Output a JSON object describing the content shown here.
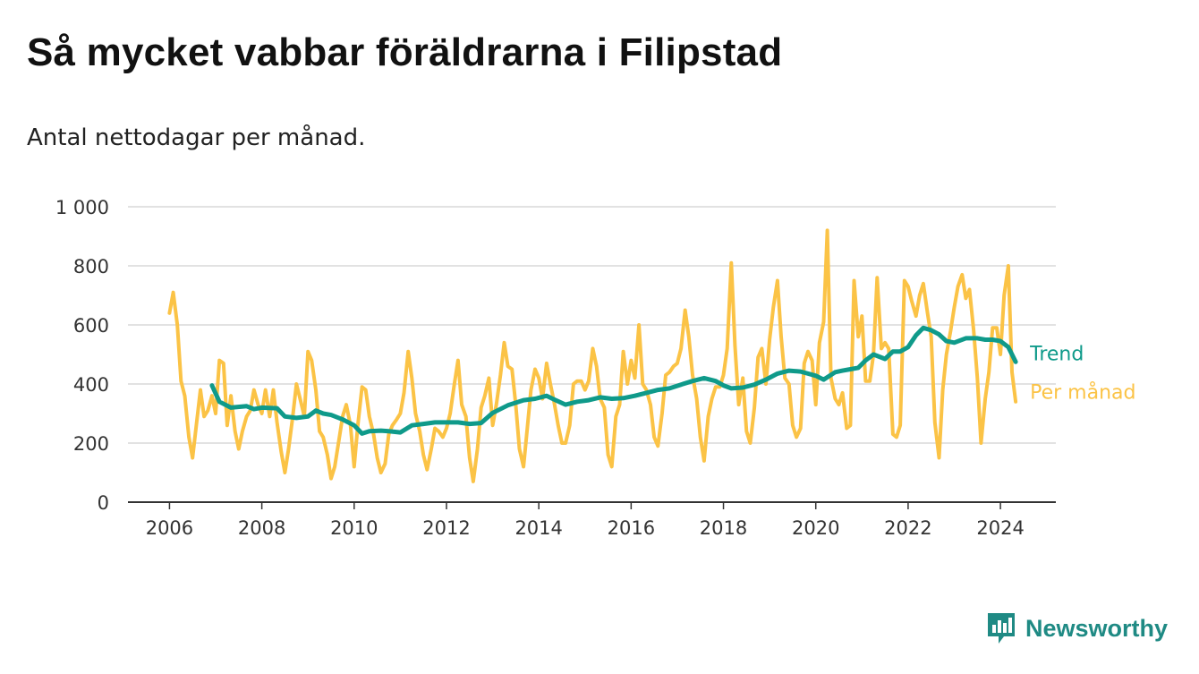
{
  "title": "Så mycket vabbar föräldrarna i Filipstad",
  "subtitle": "Antal nettodagar per månad.",
  "brand": {
    "name": "Newsworthy",
    "color": "#1f8a84"
  },
  "colors": {
    "per_month": "#fbc346",
    "trend": "#0f9a8a",
    "grid": "#d9d9d9",
    "axis": "#333333",
    "tick_text": "#333333"
  },
  "chart_data": {
    "type": "line",
    "x_unit": "year (decimal)",
    "xlim": [
      2005.1,
      2025.2
    ],
    "ylim": [
      0,
      1000
    ],
    "yticks": [
      0,
      200,
      400,
      600,
      800,
      1000
    ],
    "ytick_labels": [
      "0",
      "200",
      "400",
      "600",
      "800",
      "1 000"
    ],
    "xticks": [
      2006,
      2008,
      2010,
      2012,
      2014,
      2016,
      2018,
      2020,
      2022,
      2024
    ],
    "xtick_labels": [
      "2006",
      "2008",
      "2010",
      "2012",
      "2014",
      "2016",
      "2018",
      "2020",
      "2022",
      "2024"
    ],
    "grid": "horizontal",
    "series": [
      {
        "name": "Per månad",
        "key": "per_month",
        "x": [
          2006.0,
          2006.08,
          2006.17,
          2006.25,
          2006.33,
          2006.42,
          2006.5,
          2006.58,
          2006.67,
          2006.75,
          2006.83,
          2006.92,
          2007.0,
          2007.08,
          2007.17,
          2007.25,
          2007.33,
          2007.42,
          2007.5,
          2007.58,
          2007.67,
          2007.75,
          2007.83,
          2007.92,
          2008.0,
          2008.08,
          2008.17,
          2008.25,
          2008.33,
          2008.42,
          2008.5,
          2008.58,
          2008.67,
          2008.75,
          2008.83,
          2008.92,
          2009.0,
          2009.08,
          2009.17,
          2009.25,
          2009.33,
          2009.42,
          2009.5,
          2009.58,
          2009.67,
          2009.75,
          2009.83,
          2009.92,
          2010.0,
          2010.08,
          2010.17,
          2010.25,
          2010.33,
          2010.42,
          2010.5,
          2010.58,
          2010.67,
          2010.75,
          2010.83,
          2010.92,
          2011.0,
          2011.08,
          2011.17,
          2011.25,
          2011.33,
          2011.42,
          2011.5,
          2011.58,
          2011.67,
          2011.75,
          2011.83,
          2011.92,
          2012.0,
          2012.08,
          2012.17,
          2012.25,
          2012.33,
          2012.42,
          2012.5,
          2012.58,
          2012.67,
          2012.75,
          2012.83,
          2012.92,
          2013.0,
          2013.08,
          2013.17,
          2013.25,
          2013.33,
          2013.42,
          2013.5,
          2013.58,
          2013.67,
          2013.75,
          2013.83,
          2013.92,
          2014.0,
          2014.08,
          2014.17,
          2014.25,
          2014.33,
          2014.42,
          2014.5,
          2014.58,
          2014.67,
          2014.75,
          2014.83,
          2014.92,
          2015.0,
          2015.08,
          2015.17,
          2015.25,
          2015.33,
          2015.42,
          2015.5,
          2015.58,
          2015.67,
          2015.75,
          2015.83,
          2015.92,
          2016.0,
          2016.08,
          2016.17,
          2016.25,
          2016.33,
          2016.42,
          2016.5,
          2016.58,
          2016.67,
          2016.75,
          2016.83,
          2016.92,
          2017.0,
          2017.08,
          2017.17,
          2017.25,
          2017.33,
          2017.42,
          2017.5,
          2017.58,
          2017.67,
          2017.75,
          2017.83,
          2017.92,
          2018.0,
          2018.08,
          2018.17,
          2018.25,
          2018.33,
          2018.42,
          2018.5,
          2018.58,
          2018.67,
          2018.75,
          2018.83,
          2018.92,
          2019.0,
          2019.08,
          2019.17,
          2019.25,
          2019.33,
          2019.42,
          2019.5,
          2019.58,
          2019.67,
          2019.75,
          2019.83,
          2019.92,
          2020.0,
          2020.08,
          2020.17,
          2020.25,
          2020.33,
          2020.42,
          2020.5,
          2020.58,
          2020.67,
          2020.75,
          2020.83,
          2020.92,
          2021.0,
          2021.08,
          2021.17,
          2021.25,
          2021.33,
          2021.42,
          2021.5,
          2021.58,
          2021.67,
          2021.75,
          2021.83,
          2021.92,
          2022.0,
          2022.08,
          2022.17,
          2022.25,
          2022.33,
          2022.42,
          2022.5,
          2022.58,
          2022.67,
          2022.75,
          2022.83,
          2022.92,
          2023.0,
          2023.08,
          2023.17,
          2023.25,
          2023.33,
          2023.42,
          2023.5,
          2023.58,
          2023.67,
          2023.75,
          2023.83,
          2023.92,
          2024.0,
          2024.08,
          2024.17,
          2024.25,
          2024.33
        ],
        "y": [
          640,
          710,
          600,
          410,
          360,
          220,
          150,
          260,
          380,
          290,
          310,
          360,
          300,
          480,
          470,
          260,
          360,
          240,
          180,
          240,
          290,
          310,
          380,
          330,
          300,
          380,
          290,
          380,
          270,
          170,
          100,
          180,
          290,
          400,
          350,
          290,
          510,
          480,
          380,
          240,
          220,
          160,
          80,
          120,
          210,
          290,
          330,
          260,
          120,
          260,
          390,
          380,
          290,
          230,
          150,
          100,
          130,
          230,
          260,
          280,
          300,
          370,
          510,
          420,
          300,
          240,
          160,
          110,
          180,
          250,
          240,
          220,
          250,
          300,
          400,
          480,
          330,
          290,
          150,
          70,
          180,
          320,
          360,
          420,
          260,
          330,
          430,
          540,
          460,
          450,
          330,
          180,
          120,
          250,
          380,
          450,
          420,
          350,
          470,
          400,
          340,
          260,
          200,
          200,
          260,
          400,
          410,
          410,
          380,
          410,
          520,
          460,
          350,
          320,
          160,
          120,
          290,
          330,
          510,
          400,
          480,
          420,
          600,
          400,
          380,
          330,
          220,
          190,
          300,
          430,
          440,
          460,
          470,
          520,
          650,
          560,
          430,
          350,
          220,
          140,
          290,
          350,
          390,
          390,
          430,
          520,
          810,
          530,
          330,
          420,
          240,
          200,
          320,
          490,
          520,
          400,
          550,
          660,
          750,
          560,
          420,
          400,
          260,
          220,
          250,
          470,
          510,
          480,
          330,
          540,
          610,
          920,
          420,
          350,
          330,
          370,
          250,
          260,
          750,
          560,
          630,
          410,
          410,
          500,
          760,
          520,
          540,
          520,
          230,
          220,
          260,
          750,
          730,
          680,
          630,
          700,
          740,
          640,
          560,
          270,
          150,
          380,
          500,
          580,
          660,
          730,
          770,
          690,
          720,
          580,
          420,
          200,
          350,
          440,
          590,
          590,
          500,
          700,
          800,
          440,
          340
        ]
      },
      {
        "name": "Trend",
        "key": "trend",
        "x": [
          2006.92,
          2007.08,
          2007.33,
          2007.67,
          2007.83,
          2008.0,
          2008.33,
          2008.5,
          2008.75,
          2009.0,
          2009.17,
          2009.33,
          2009.5,
          2009.75,
          2010.0,
          2010.17,
          2010.33,
          2010.58,
          2010.75,
          2011.0,
          2011.25,
          2011.5,
          2011.75,
          2012.0,
          2012.25,
          2012.5,
          2012.75,
          2013.0,
          2013.33,
          2013.67,
          2013.92,
          2014.17,
          2014.33,
          2014.58,
          2014.83,
          2015.08,
          2015.33,
          2015.58,
          2015.83,
          2016.08,
          2016.33,
          2016.58,
          2016.83,
          2017.08,
          2017.33,
          2017.58,
          2017.83,
          2018.0,
          2018.17,
          2018.42,
          2018.67,
          2018.92,
          2019.17,
          2019.42,
          2019.67,
          2019.83,
          2020.0,
          2020.17,
          2020.42,
          2020.58,
          2020.75,
          2020.92,
          2021.08,
          2021.25,
          2021.5,
          2021.67,
          2021.83,
          2022.0,
          2022.17,
          2022.33,
          2022.5,
          2022.67,
          2022.83,
          2023.0,
          2023.25,
          2023.5,
          2023.67,
          2023.83,
          2024.0,
          2024.17,
          2024.33
        ],
        "y": [
          395,
          340,
          320,
          325,
          315,
          320,
          318,
          290,
          285,
          290,
          310,
          300,
          295,
          280,
          260,
          232,
          240,
          242,
          240,
          236,
          260,
          265,
          270,
          270,
          270,
          265,
          268,
          302,
          328,
          345,
          350,
          360,
          348,
          330,
          340,
          345,
          355,
          350,
          352,
          360,
          370,
          380,
          385,
          398,
          410,
          420,
          410,
          395,
          385,
          388,
          398,
          415,
          435,
          445,
          442,
          435,
          428,
          415,
          440,
          445,
          450,
          455,
          480,
          500,
          485,
          510,
          510,
          525,
          565,
          590,
          582,
          568,
          545,
          540,
          555,
          555,
          550,
          550,
          545,
          525,
          475
        ]
      }
    ],
    "legend": "right-end labels"
  }
}
